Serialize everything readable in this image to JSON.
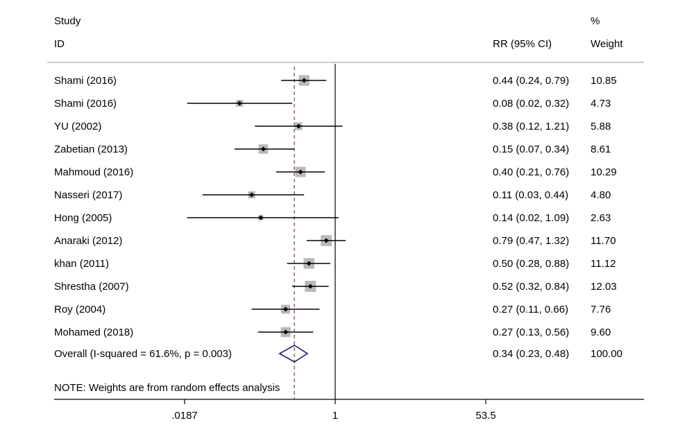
{
  "chart_data": {
    "type": "forest",
    "header": {
      "study_line1": "Study",
      "study_line2": "ID",
      "effect_label": "RR (95% CI)",
      "weight_line1": "%",
      "weight_line2": "Weight"
    },
    "scale": "log",
    "xlim": [
      0.0187,
      53.5
    ],
    "xticks": [
      {
        "value": 0.0187,
        "label": ".0187"
      },
      {
        "value": 1,
        "label": "1"
      },
      {
        "value": 53.5,
        "label": "53.5"
      }
    ],
    "null_value": 1,
    "studies": [
      {
        "label": "Shami (2016)",
        "rr": 0.44,
        "lo": 0.24,
        "hi": 0.79,
        "ci_text": "0.44 (0.24, 0.79)",
        "weight": 10.85,
        "weight_text": "10.85"
      },
      {
        "label": "Shami (2016)",
        "rr": 0.08,
        "lo": 0.02,
        "hi": 0.32,
        "ci_text": "0.08 (0.02, 0.32)",
        "weight": 4.73,
        "weight_text": "4.73"
      },
      {
        "label": "YU (2002)",
        "rr": 0.38,
        "lo": 0.12,
        "hi": 1.21,
        "ci_text": "0.38 (0.12, 1.21)",
        "weight": 5.88,
        "weight_text": "5.88"
      },
      {
        "label": "Zabetian (2013)",
        "rr": 0.15,
        "lo": 0.07,
        "hi": 0.34,
        "ci_text": "0.15 (0.07, 0.34)",
        "weight": 8.61,
        "weight_text": "8.61"
      },
      {
        "label": "Mahmoud (2016)",
        "rr": 0.4,
        "lo": 0.21,
        "hi": 0.76,
        "ci_text": "0.40 (0.21, 0.76)",
        "weight": 10.29,
        "weight_text": "10.29"
      },
      {
        "label": "Nasseri (2017)",
        "rr": 0.11,
        "lo": 0.03,
        "hi": 0.44,
        "ci_text": "0.11 (0.03, 0.44)",
        "weight": 4.8,
        "weight_text": "4.80"
      },
      {
        "label": "Hong (2005)",
        "rr": 0.14,
        "lo": 0.02,
        "hi": 1.09,
        "ci_text": "0.14 (0.02, 1.09)",
        "weight": 2.63,
        "weight_text": "2.63"
      },
      {
        "label": "Anaraki (2012)",
        "rr": 0.79,
        "lo": 0.47,
        "hi": 1.32,
        "ci_text": "0.79 (0.47, 1.32)",
        "weight": 11.7,
        "weight_text": "11.70"
      },
      {
        "label": "khan (2011)",
        "rr": 0.5,
        "lo": 0.28,
        "hi": 0.88,
        "ci_text": "0.50 (0.28, 0.88)",
        "weight": 11.12,
        "weight_text": "11.12"
      },
      {
        "label": "Shrestha (2007)",
        "rr": 0.52,
        "lo": 0.32,
        "hi": 0.84,
        "ci_text": "0.52 (0.32, 0.84)",
        "weight": 12.03,
        "weight_text": "12.03"
      },
      {
        "label": "Roy (2004)",
        "rr": 0.27,
        "lo": 0.11,
        "hi": 0.66,
        "ci_text": "0.27 (0.11, 0.66)",
        "weight": 7.76,
        "weight_text": "7.76"
      },
      {
        "label": "Mohamed (2018)",
        "rr": 0.27,
        "lo": 0.13,
        "hi": 0.56,
        "ci_text": "0.27 (0.13, 0.56)",
        "weight": 9.6,
        "weight_text": "9.60"
      }
    ],
    "overall": {
      "label": "Overall  (I-squared = 61.6%, p = 0.003)",
      "rr": 0.34,
      "lo": 0.23,
      "hi": 0.48,
      "ci_text": "0.34 (0.23, 0.48)",
      "weight_text": "100.00"
    },
    "note": "NOTE: Weights are from random effects analysis",
    "colors": {
      "box": "#b9b9b9",
      "line": "#000000",
      "diamond": "#1a1a5e",
      "overall_line": "#8b3a3a"
    }
  }
}
